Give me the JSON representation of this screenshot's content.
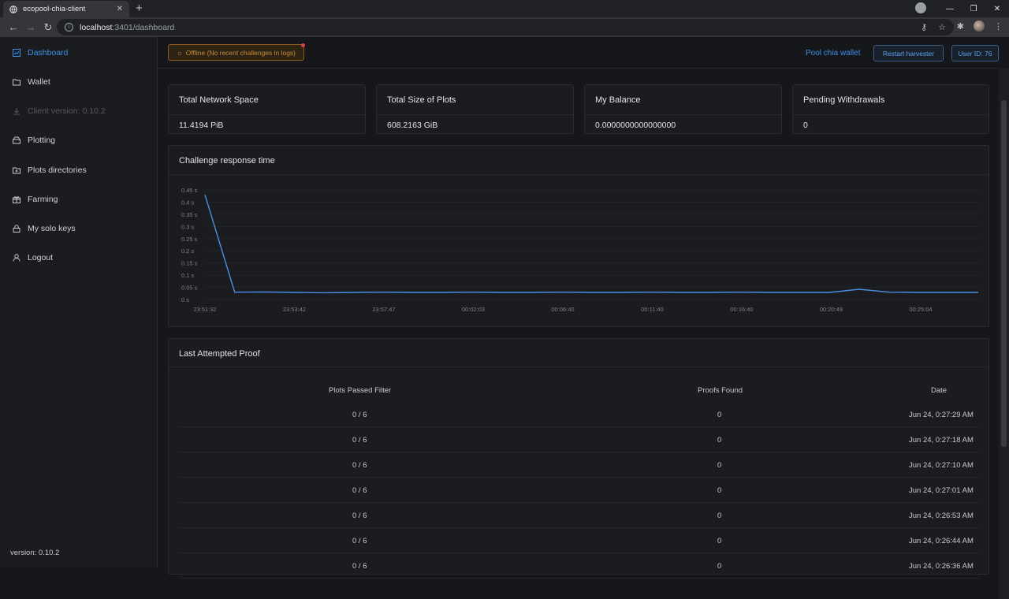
{
  "browser": {
    "tab_title": "ecopool-chia-client",
    "url_host": "localhost",
    "url_rest": ":3401/dashboard"
  },
  "sidebar": {
    "items": [
      {
        "label": "Dashboard",
        "icon": "chart-icon"
      },
      {
        "label": "Wallet",
        "icon": "folder-icon"
      },
      {
        "label": "Client version: 0.10.2",
        "icon": "download-icon"
      },
      {
        "label": "Plotting",
        "icon": "drive-icon"
      },
      {
        "label": "Plots directories",
        "icon": "folder-plus-icon"
      },
      {
        "label": "Farming",
        "icon": "gift-icon"
      },
      {
        "label": "My solo keys",
        "icon": "lock-icon"
      },
      {
        "label": "Logout",
        "icon": "user-icon"
      }
    ],
    "version": "version: 0.10.2"
  },
  "topbar": {
    "offline": "Offline (No recent challenges in logs)",
    "pool_wallet": "Pool chia wallet",
    "restart": "Restart harvester",
    "user_id": "User ID: 76"
  },
  "stats": [
    {
      "title": "Total Network Space",
      "value": "11.4194 PiB"
    },
    {
      "title": "Total Size of Plots",
      "value": "608.2163 GiB"
    },
    {
      "title": "My Balance",
      "value": "0.0000000000000000"
    },
    {
      "title": "Pending Withdrawals",
      "value": "0"
    }
  ],
  "chart": {
    "title": "Challenge response time"
  },
  "chart_data": {
    "type": "line",
    "title": "Challenge response time",
    "xlabel": "",
    "ylabel": "",
    "ylim": [
      0,
      0.45
    ],
    "y_ticks": [
      "0 s",
      "0.05 s",
      "0.1 s",
      "0.15 s",
      "0.2 s",
      "0.25 s",
      "0.3 s",
      "0.35 s",
      "0.4 s",
      "0.45 s"
    ],
    "x_ticks": [
      "23:51:32",
      "23:53:42",
      "23:57:47",
      "00:02:03",
      "00:06:40",
      "00:11:40",
      "00:16:40",
      "00:20:49",
      "00:25:04"
    ],
    "color": "#4a90e2",
    "series": [
      {
        "values": [
          0.43,
          0.03,
          0.031,
          0.029,
          0.028,
          0.029,
          0.03,
          0.029,
          0.029,
          0.03,
          0.029,
          0.029,
          0.03,
          0.029,
          0.029,
          0.03,
          0.029,
          0.029,
          0.03,
          0.029,
          0.029,
          0.029,
          0.042,
          0.03,
          0.029,
          0.029,
          0.029
        ]
      }
    ]
  },
  "proofs": {
    "title": "Last Attempted Proof",
    "columns": [
      "Plots Passed Filter",
      "Proofs Found",
      "Date"
    ],
    "rows": [
      [
        "0 / 6",
        "0",
        "Jun 24, 0:27:29 AM"
      ],
      [
        "0 / 6",
        "0",
        "Jun 24, 0:27:18 AM"
      ],
      [
        "0 / 6",
        "0",
        "Jun 24, 0:27:10 AM"
      ],
      [
        "0 / 6",
        "0",
        "Jun 24, 0:27:01 AM"
      ],
      [
        "0 / 6",
        "0",
        "Jun 24, 0:26:53 AM"
      ],
      [
        "0 / 6",
        "0",
        "Jun 24, 0:26:44 AM"
      ],
      [
        "0 / 6",
        "0",
        "Jun 24, 0:26:36 AM"
      ]
    ]
  }
}
